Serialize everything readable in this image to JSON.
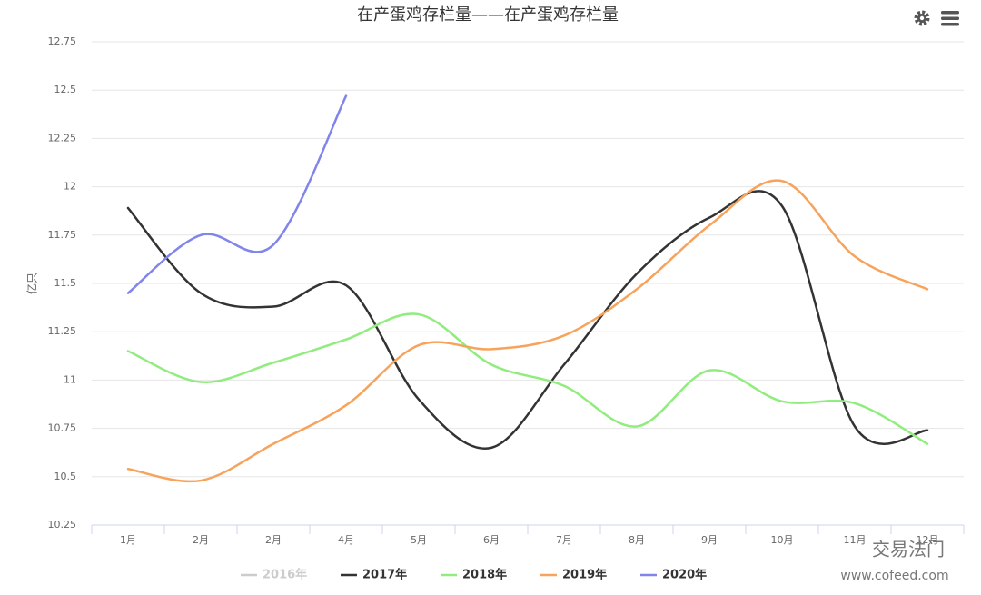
{
  "chart_data": {
    "type": "line",
    "title": "在产蛋鸡存栏量——在产蛋鸡存栏量",
    "y_axis_label": "亿只",
    "categories": [
      "1月",
      "2月",
      "2月",
      "4月",
      "5月",
      "6月",
      "7月",
      "8月",
      "9月",
      "10月",
      "11月",
      "12月"
    ],
    "ylim": [
      10.25,
      12.75
    ],
    "yticks": [
      10.25,
      10.5,
      10.75,
      11,
      11.25,
      11.5,
      11.75,
      12,
      12.25,
      12.5,
      12.75
    ],
    "grid": true,
    "smooth": true,
    "legend": "bottom",
    "series": [
      {
        "name": "2016年",
        "color": "#cccccc",
        "hidden": true,
        "values": [
          null,
          null,
          null,
          null,
          null,
          null,
          null,
          null,
          null,
          null,
          null,
          null
        ]
      },
      {
        "name": "2017年",
        "color": "#333333",
        "values": [
          11.89,
          11.45,
          11.38,
          11.49,
          10.9,
          10.65,
          11.08,
          11.55,
          11.84,
          11.9,
          10.76,
          10.74
        ]
      },
      {
        "name": "2018年",
        "color": "#90ed7d",
        "values": [
          11.15,
          10.99,
          11.09,
          11.21,
          11.34,
          11.08,
          10.97,
          10.76,
          11.05,
          10.89,
          10.88,
          10.67
        ]
      },
      {
        "name": "2019年",
        "color": "#f7a35c",
        "values": [
          10.54,
          10.48,
          10.67,
          10.87,
          11.18,
          11.16,
          11.23,
          11.47,
          11.8,
          12.03,
          11.64,
          11.47
        ]
      },
      {
        "name": "2020年",
        "color": "#8085e9",
        "values": [
          11.45,
          11.75,
          11.7,
          12.47,
          null,
          null,
          null,
          null,
          null,
          null,
          null,
          null
        ]
      }
    ],
    "watermark": [
      "交易法门",
      "www.cofeed.com"
    ]
  }
}
